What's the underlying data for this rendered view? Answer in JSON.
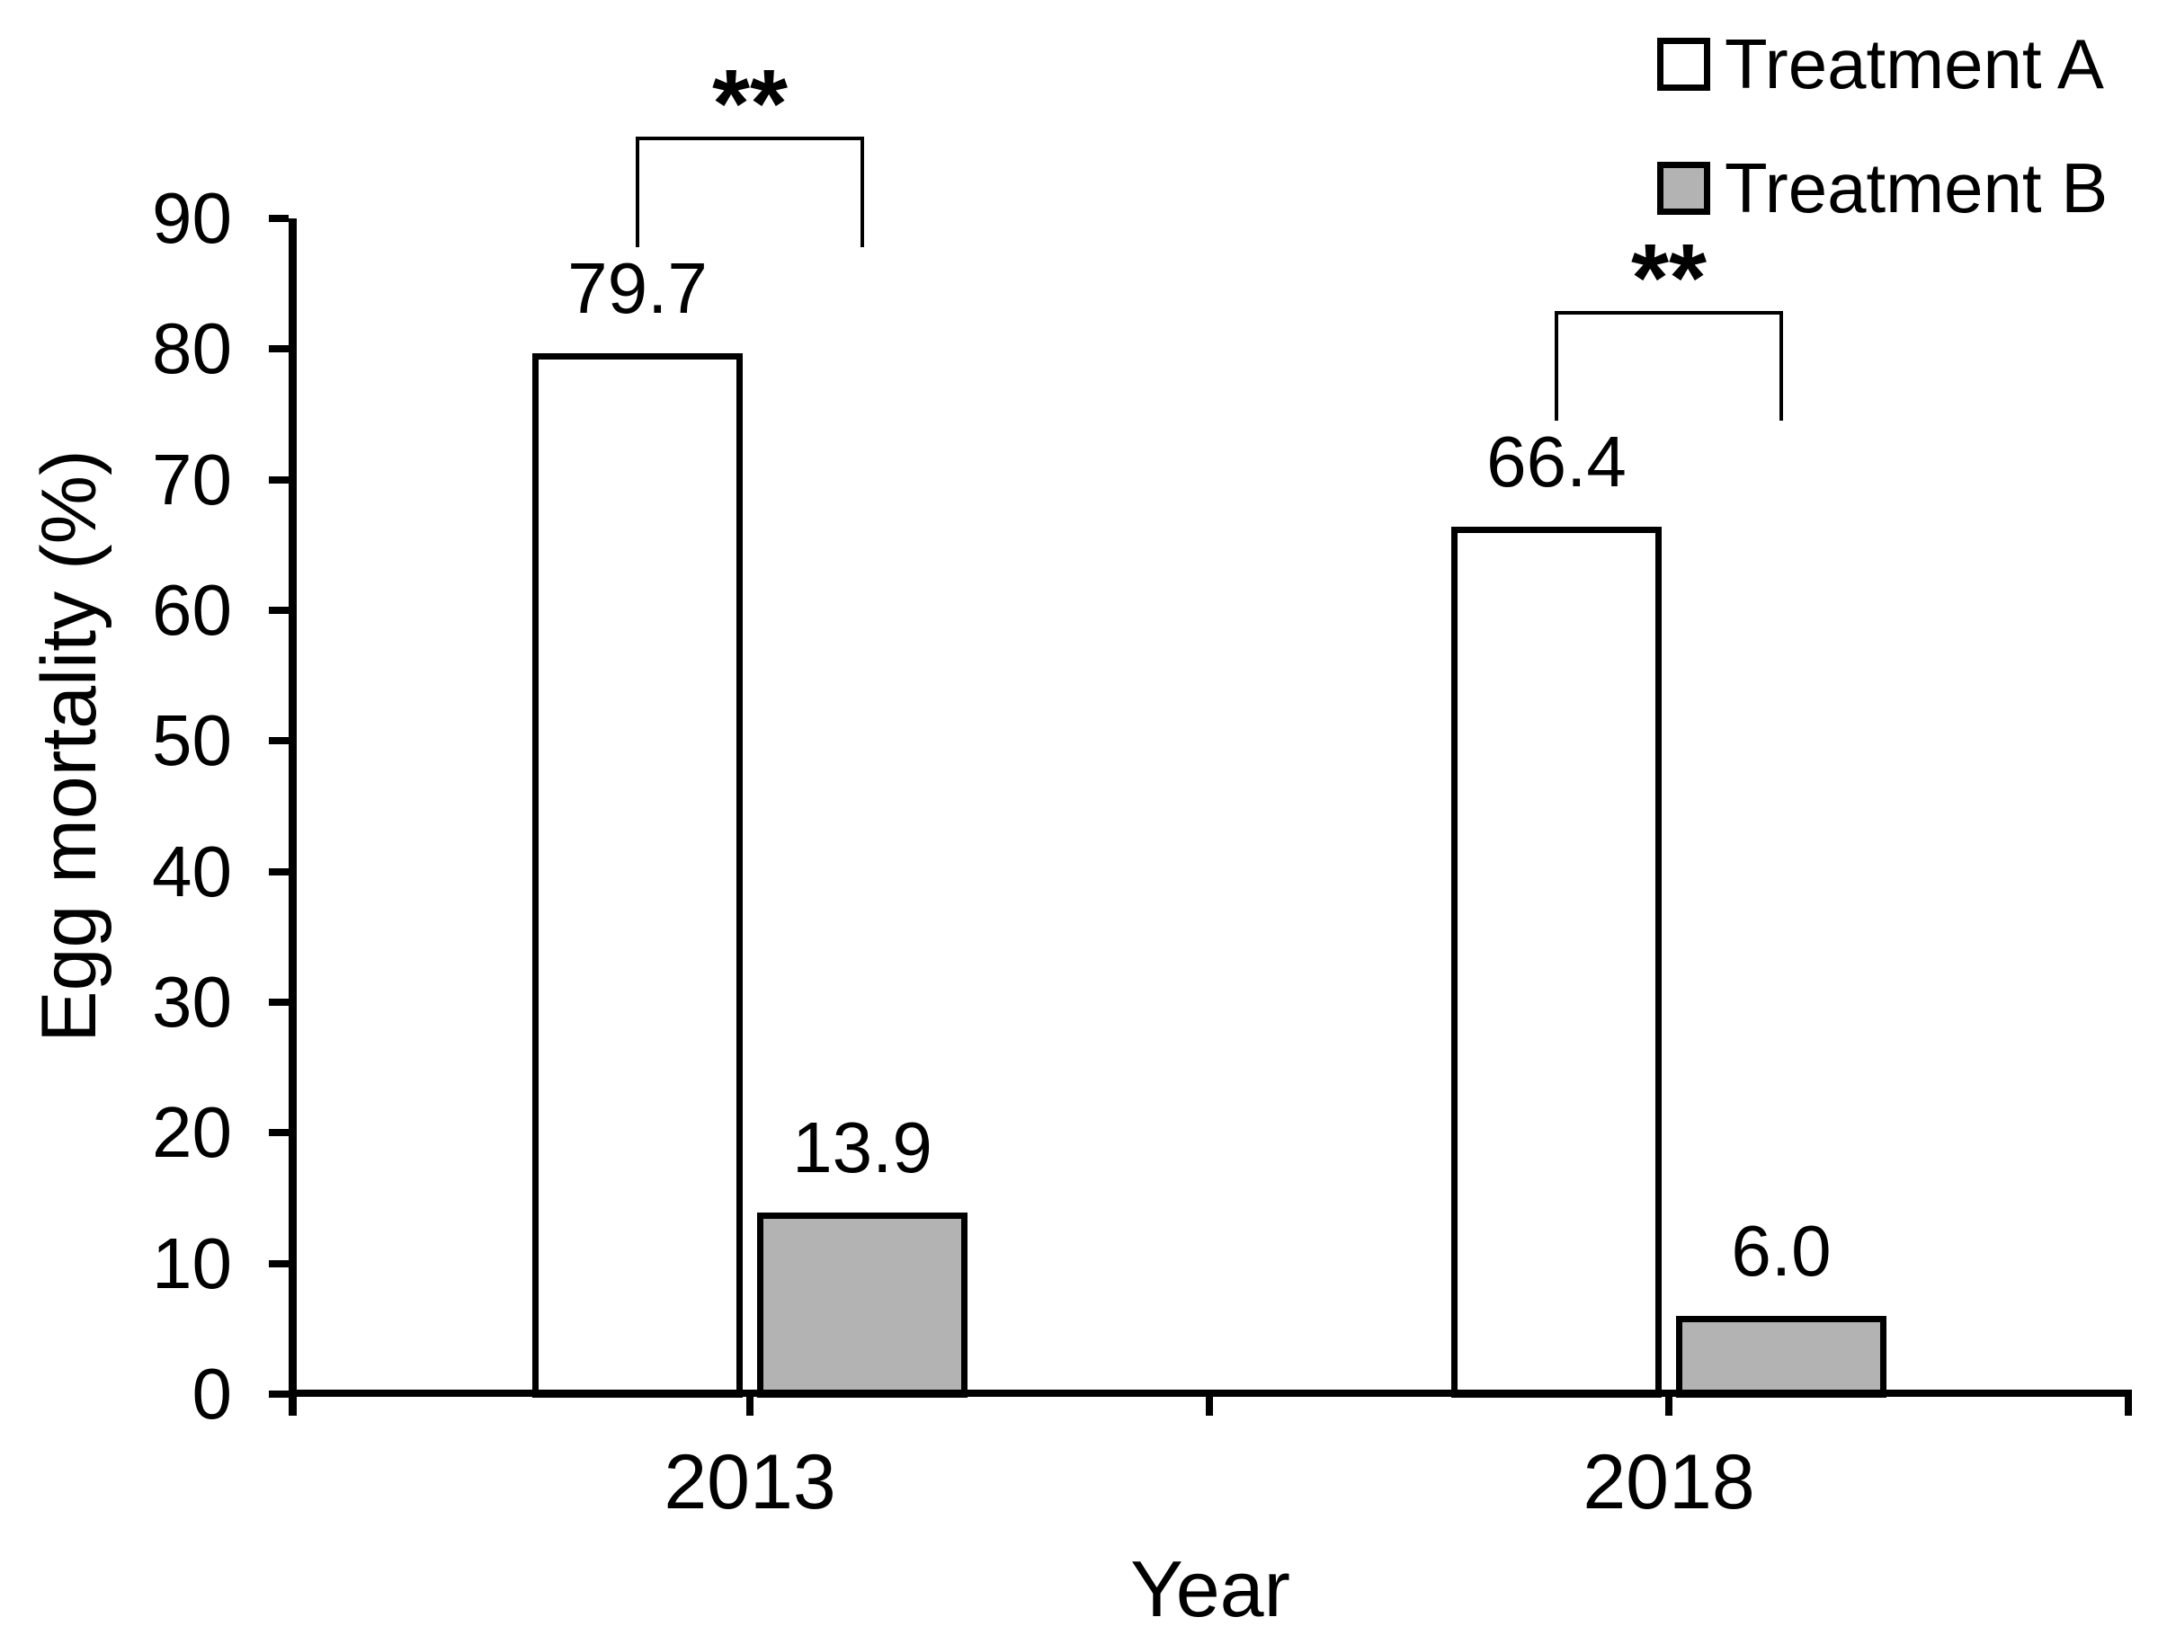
{
  "chart_data": {
    "type": "bar",
    "title": "",
    "categories": [
      "2013",
      "2018"
    ],
    "series": [
      {
        "name": "Treatment A",
        "fill": "#ffffff",
        "values": [
          79.7,
          66.4
        ],
        "value_labels": [
          "79.7",
          "66.4"
        ]
      },
      {
        "name": "Treatment B",
        "fill": "#b3b3b3",
        "values": [
          13.9,
          6.0
        ],
        "value_labels": [
          "13.9",
          "6.0"
        ]
      }
    ],
    "xlabel": "Year",
    "ylabel": "Egg mortality (%)",
    "ylim": [
      0,
      90
    ],
    "yticks": [
      "0",
      "10",
      "20",
      "30",
      "40",
      "50",
      "60",
      "70",
      "80",
      "90"
    ],
    "grid": false,
    "legend_position": "top-right",
    "annotations": [
      {
        "category": "2013",
        "text": "**",
        "meaning": "significant difference between Treatment A and Treatment B"
      },
      {
        "category": "2018",
        "text": "**",
        "meaning": "significant difference between Treatment A and Treatment B"
      }
    ]
  },
  "colors": {
    "background": "#ffffff",
    "axis": "#000000",
    "text": "#000000",
    "bar_border": "#000000",
    "treatment_a_fill": "#ffffff",
    "treatment_b_fill": "#b3b3b3"
  }
}
